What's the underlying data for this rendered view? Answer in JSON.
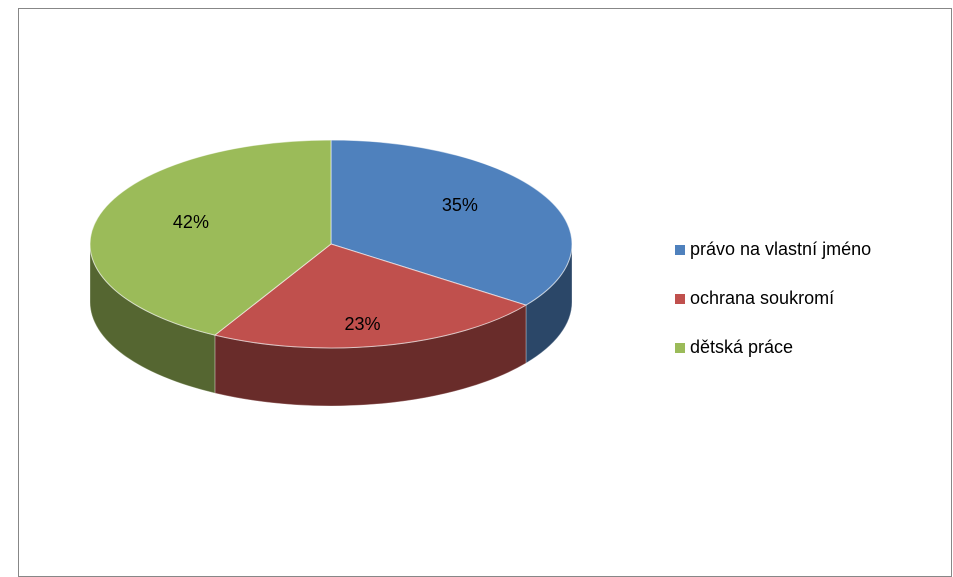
{
  "chart_data": {
    "type": "pie",
    "categories": [
      "právo na vlastní jméno",
      "ochrana soukromí",
      "dětská práce"
    ],
    "values": [
      35,
      23,
      42
    ],
    "value_labels": [
      "35%",
      "23%",
      "42%"
    ],
    "colors": [
      "#4f81bd",
      "#c0504d",
      "#9bbb59"
    ],
    "legend": "right"
  }
}
